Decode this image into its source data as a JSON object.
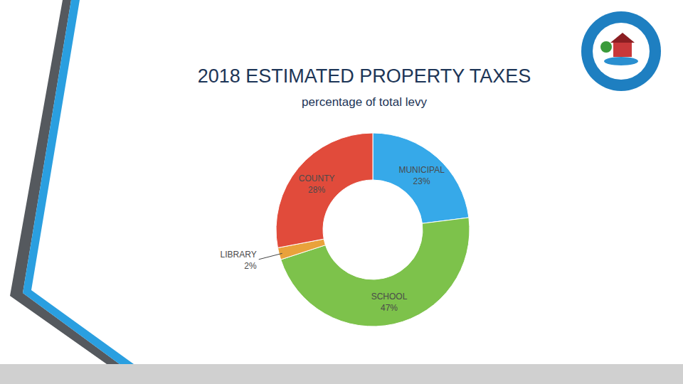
{
  "chart_data": {
    "type": "pie",
    "title": "2018 ESTIMATED PROPERTY TAXES",
    "subtitle": "percentage of total levy",
    "categories": [
      "MUNICIPAL",
      "SCHOOL",
      "LIBRARY",
      "COUNTY"
    ],
    "values": [
      23,
      47,
      2,
      28
    ],
    "value_labels": [
      "23%",
      "47%",
      "2%",
      "28%"
    ],
    "colors": [
      "#36a9e9",
      "#7dc24b",
      "#e9a23b",
      "#e14b3b"
    ],
    "data_labels": true
  }
}
